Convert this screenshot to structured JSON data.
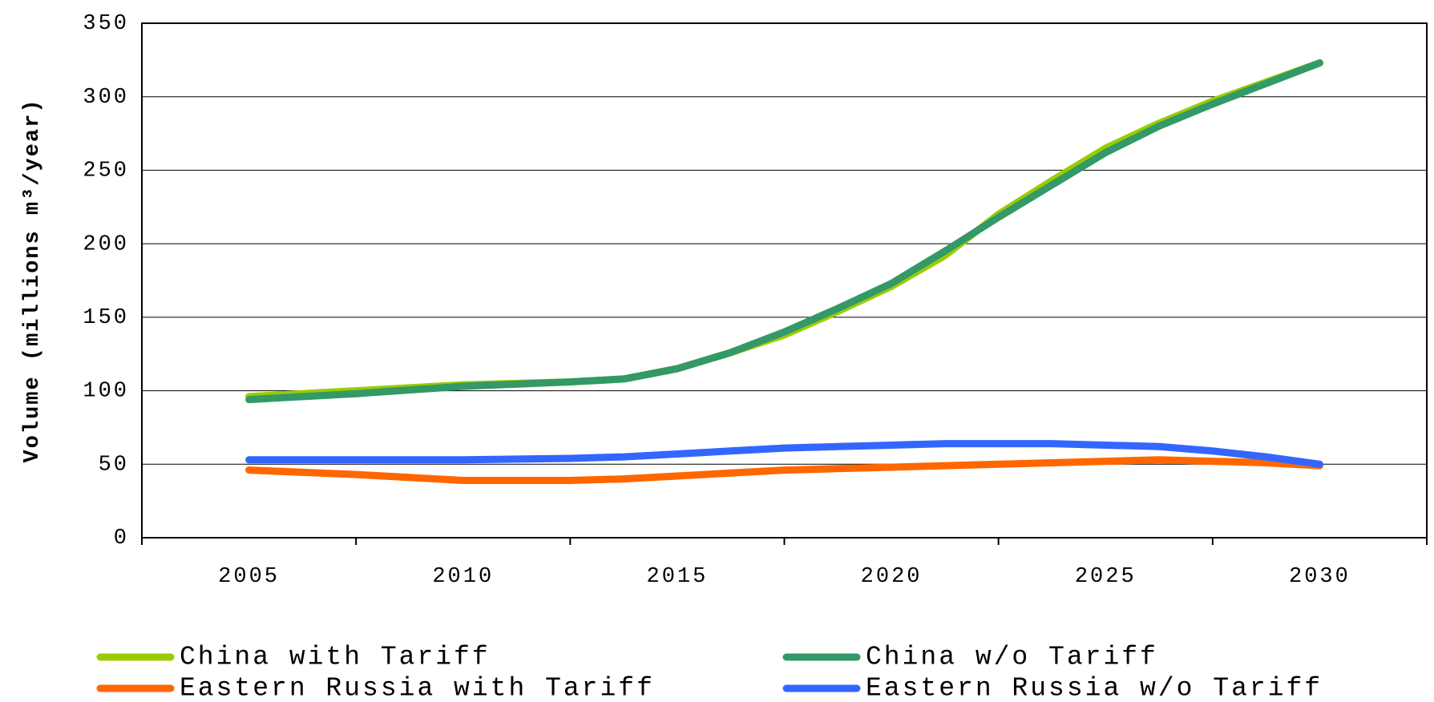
{
  "chart_data": {
    "type": "line",
    "ylabel": "Volume (millions m³/year)",
    "x": [
      2005,
      2007.5,
      2010,
      2012.5,
      2013.75,
      2015,
      2016.25,
      2017.5,
      2018.75,
      2020,
      2021.25,
      2022.5,
      2023.75,
      2025,
      2026.25,
      2027.5,
      2028.75,
      2030
    ],
    "xlim": [
      2002.5,
      2032.5
    ],
    "xticks": [
      2005,
      2010,
      2015,
      2020,
      2025,
      2030
    ],
    "ylim": [
      0,
      350
    ],
    "yticks": [
      0,
      50,
      100,
      150,
      200,
      250,
      300,
      350
    ],
    "grid": true,
    "legend": "bottom",
    "series": [
      {
        "name": "China with Tariff",
        "color": "#99cc00",
        "values": [
          96,
          100,
          104,
          106,
          108,
          115,
          126,
          138,
          154,
          171,
          192,
          220,
          243,
          265,
          282,
          297,
          310,
          323
        ]
      },
      {
        "name": "China w/o Tariff",
        "color": "#339966",
        "values": [
          94,
          98,
          103,
          106,
          108,
          115,
          126,
          140,
          156,
          173,
          195,
          218,
          240,
          262,
          280,
          295,
          309,
          323
        ]
      },
      {
        "name": "Eastern Russia with Tariff",
        "color": "#ff6600",
        "values": [
          46,
          43,
          39,
          39,
          40,
          42,
          44,
          46,
          47,
          48,
          49,
          50,
          51,
          52,
          53,
          52,
          51,
          49
        ]
      },
      {
        "name": "Eastern Russia w/o Tariff",
        "color": "#3366ff",
        "values": [
          53,
          53,
          53,
          54,
          55,
          57,
          59,
          61,
          62,
          63,
          64,
          64,
          64,
          63,
          62,
          59,
          55,
          50
        ]
      }
    ]
  }
}
